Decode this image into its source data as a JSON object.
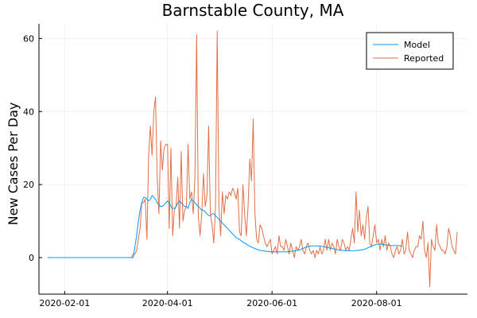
{
  "chart_data": {
    "type": "line",
    "title": "Barnstable County, MA",
    "xlabel": "",
    "ylabel": "New Cases Per Day",
    "x_start": "2020-01-22",
    "xlim": [
      "2020-01-17",
      "2020-09-23"
    ],
    "ylim": [
      -10,
      64
    ],
    "x_ticks": [
      "2020-02-01",
      "2020-04-01",
      "2020-06-01",
      "2020-08-01"
    ],
    "y_ticks": [
      0,
      20,
      40,
      60
    ],
    "grid": true,
    "legend": "top-right",
    "series": [
      {
        "name": "Model",
        "color": "#009af9",
        "values": [
          0,
          0,
          0,
          0,
          0,
          0,
          0,
          0,
          0,
          0,
          0,
          0,
          0,
          0,
          0,
          0,
          0,
          0,
          0,
          0,
          0,
          0,
          0,
          0,
          0,
          0,
          0,
          0,
          0,
          0,
          0,
          0,
          0,
          0,
          0,
          0,
          0,
          0,
          0,
          0,
          0,
          0,
          0,
          0,
          0,
          0,
          0,
          0,
          0,
          0,
          0,
          3,
          6,
          10,
          13,
          15,
          16.5,
          16.5,
          16,
          15.5,
          16,
          17,
          16.5,
          16,
          15,
          14.5,
          14,
          14,
          14.5,
          15,
          15.5,
          15,
          14,
          13.5,
          13.5,
          14,
          15,
          15.5,
          15,
          14.5,
          14,
          14,
          13.5,
          15,
          16,
          15.5,
          15,
          14.5,
          14,
          13.5,
          13,
          13,
          12.5,
          12,
          11.5,
          11.5,
          12,
          12,
          11.5,
          11,
          10.5,
          10,
          9.5,
          9,
          8.5,
          8,
          7.5,
          7,
          6.5,
          6,
          5.5,
          5.2,
          5,
          4.6,
          4.2,
          4,
          3.7,
          3.4,
          3.1,
          2.9,
          2.7,
          2.5,
          2.3,
          2.1,
          2,
          1.9,
          1.8,
          1.8,
          1.7,
          1.7,
          1.6,
          1.6,
          1.6,
          1.6,
          1.6,
          1.6,
          1.6,
          1.6,
          1.6,
          1.6,
          1.6,
          1.7,
          1.7,
          1.8,
          1.8,
          1.9,
          2,
          2.1,
          2.3,
          2.5,
          2.7,
          2.9,
          3,
          3.1,
          3.2,
          3.2,
          3.2,
          3.2,
          3.2,
          3.2,
          3.1,
          3,
          2.9,
          2.8,
          2.7,
          2.6,
          2.5,
          2.4,
          2.3,
          2.2,
          2.1,
          2,
          2,
          1.9,
          1.9,
          1.9,
          1.9,
          1.9,
          1.9,
          1.9,
          1.9,
          2,
          2,
          2.1,
          2.2,
          2.3,
          2.5,
          2.7,
          2.9,
          3.1,
          3.3,
          3.5,
          3.6,
          3.7,
          3.7,
          3.7,
          3.6,
          3.5,
          3.4,
          3.4,
          3.3,
          3.3,
          3.3,
          3.3,
          3.3,
          3.3,
          3.2,
          3.2
        ]
      },
      {
        "name": "Reported",
        "color": "#e26f46",
        "values": [
          0,
          0,
          0,
          0,
          0,
          0,
          0,
          0,
          0,
          0,
          0,
          0,
          0,
          0,
          0,
          0,
          0,
          0,
          0,
          0,
          0,
          0,
          0,
          0,
          0,
          0,
          0,
          0,
          0,
          0,
          0,
          0,
          0,
          0,
          0,
          0,
          0,
          0,
          0,
          0,
          0,
          0,
          0,
          0,
          0,
          0,
          0,
          0,
          0,
          0,
          1,
          1,
          2,
          5,
          8,
          15,
          15,
          16,
          5,
          28,
          36,
          28,
          40,
          44,
          22,
          12,
          32,
          24,
          30,
          31,
          31,
          8,
          30,
          6,
          13,
          14,
          22,
          8,
          29,
          10,
          13,
          14,
          31,
          16,
          18,
          12,
          22,
          61,
          11,
          6,
          12,
          23,
          14,
          17,
          36,
          12,
          9,
          4,
          14,
          62,
          14,
          6,
          18,
          12,
          17,
          16,
          18,
          17,
          19,
          18,
          16,
          19,
          7,
          6,
          20,
          12,
          6,
          14,
          27,
          21,
          38,
          12,
          5,
          4,
          9,
          8,
          6,
          4,
          3,
          4,
          5,
          1,
          2,
          3,
          1,
          6,
          3,
          3,
          2,
          5,
          3,
          1,
          4,
          2,
          0,
          3,
          2,
          3,
          5,
          2,
          1,
          3,
          4,
          2,
          1,
          2,
          0,
          2,
          1,
          3,
          1,
          2,
          5,
          2,
          5,
          2,
          4,
          3,
          1,
          5,
          3,
          2,
          5,
          4,
          2,
          3,
          2,
          5,
          8,
          4,
          18,
          7,
          13,
          6,
          9,
          5,
          11,
          14,
          4,
          3,
          6,
          9,
          4,
          5,
          2,
          5,
          3,
          6,
          2,
          4,
          3,
          1,
          0,
          2,
          3,
          1,
          2,
          5,
          1,
          2,
          7,
          2,
          1,
          0,
          2,
          3,
          3,
          6,
          5,
          10,
          2,
          0,
          4,
          -8,
          5,
          3,
          2,
          9,
          4,
          3,
          2,
          2,
          1,
          3,
          8,
          6,
          3,
          2,
          1,
          7
        ]
      }
    ]
  }
}
